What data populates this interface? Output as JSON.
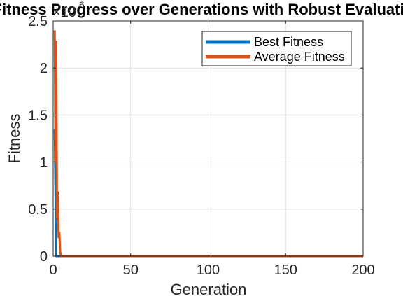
{
  "chart_data": {
    "type": "line",
    "title": "Fitness Progress over Generations with Robust Evaluation",
    "xlabel": "Generation",
    "ylabel": "Fitness",
    "xlim": [
      0,
      200
    ],
    "ylim": [
      0,
      2500000
    ],
    "x_ticks": [
      0,
      50,
      100,
      150,
      200
    ],
    "x_tick_labels": [
      "0",
      "50",
      "100",
      "150",
      "200"
    ],
    "y_ticks": [
      0,
      500000,
      1000000,
      1500000,
      2000000,
      2500000
    ],
    "y_tick_labels": [
      "0",
      "0.5",
      "1",
      "1.5",
      "2",
      "2.5"
    ],
    "y_exponent": {
      "base": "10",
      "power": "6",
      "prefix": "×"
    },
    "grid": true,
    "legend_position": "top-right",
    "series": [
      {
        "name": "Best Fitness",
        "color": "#0072BD",
        "x": [
          1,
          2,
          3,
          4,
          5,
          10,
          20,
          50,
          100,
          150,
          200
        ],
        "y": [
          1350000,
          0,
          0,
          0,
          0,
          0,
          0,
          0,
          0,
          0,
          0
        ]
      },
      {
        "name": "Average Fitness",
        "color": "#D95319",
        "x": [
          1,
          1.5,
          2,
          2.5,
          3,
          3.5,
          4,
          4.5,
          5,
          6,
          10,
          20,
          50,
          100,
          150,
          200
        ],
        "y": [
          2400000,
          1000000,
          2280000,
          400000,
          680000,
          200000,
          250000,
          50000,
          0,
          0,
          0,
          0,
          0,
          0,
          0,
          0
        ]
      }
    ]
  }
}
